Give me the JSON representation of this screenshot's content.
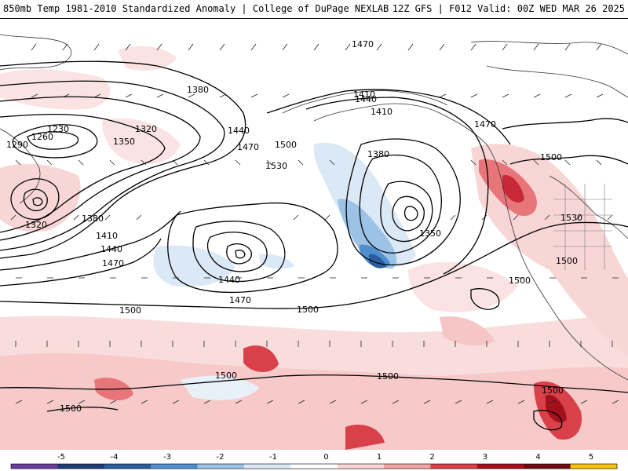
{
  "header": {
    "left": "850mb Temp 1981-2010 Standardized Anomaly | College of DuPage NEXLAB",
    "right": "12Z GFS | F012 Valid: 00Z WED MAR 26 2025"
  },
  "contour_labels": [
    "1470",
    "1380",
    "1230",
    "1260",
    "1290",
    "1320",
    "1350",
    "1440",
    "1470",
    "1500",
    "1410",
    "1530",
    "1380",
    "1410",
    "1440",
    "1470",
    "1500",
    "1530",
    "1350",
    "1320",
    "1380",
    "1410",
    "1440",
    "1470",
    "1440",
    "1470",
    "1500",
    "1500",
    "1500",
    "1500",
    "1500",
    "1500",
    "1500",
    "1500"
  ],
  "colorbar": {
    "ticks": [
      "-5",
      "-4",
      "-3",
      "-2",
      "-1",
      "0",
      "1",
      "2",
      "3",
      "4",
      "5"
    ],
    "colors": [
      "#6a3d9a",
      "#1f3b73",
      "#2a5d9e",
      "#4f8fce",
      "#9cc3e6",
      "#dbe8f5",
      "#ffffff",
      "#f8d6d6",
      "#efa3a3",
      "#d8404a",
      "#a3101c",
      "#6e0a10",
      "#f5c400"
    ]
  }
}
